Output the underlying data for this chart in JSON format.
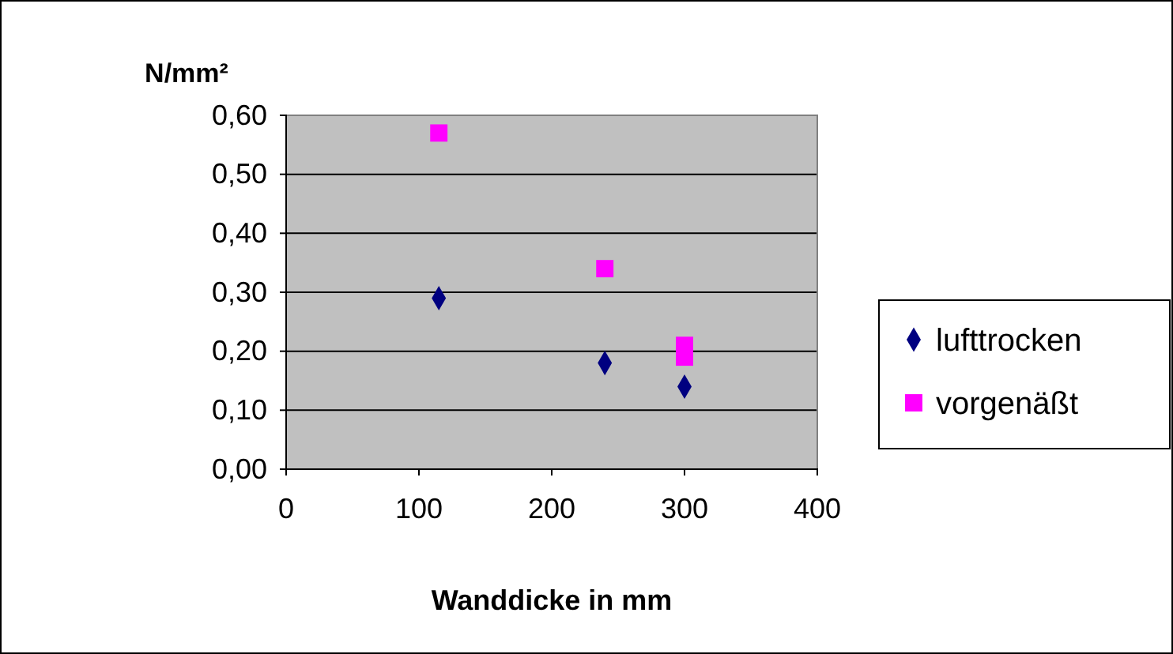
{
  "chart_data": {
    "type": "scatter",
    "xlabel": "Wanddicke in mm",
    "ylabel": "N/mm²",
    "series": [
      {
        "name": "lufttrocken",
        "color": "#000080",
        "marker": "diamond",
        "x": [
          115,
          240,
          300
        ],
        "values": [
          0.29,
          0.18,
          0.14
        ]
      },
      {
        "name": "vorgenäßt",
        "color": "#ff00ff",
        "marker": "square",
        "x": [
          115,
          240,
          300,
          300
        ],
        "values": [
          0.57,
          0.34,
          0.21,
          0.19
        ]
      }
    ],
    "xlim": [
      0,
      400
    ],
    "xticks": [
      0,
      100,
      200,
      300,
      400
    ],
    "ylim": [
      0,
      0.6
    ],
    "yticks": [
      {
        "value": 0,
        "label": "0,00"
      },
      {
        "value": 0.1,
        "label": "0,10"
      },
      {
        "value": 0.2,
        "label": "0,20"
      },
      {
        "value": 0.3,
        "label": "0,30"
      },
      {
        "value": 0.4,
        "label": "0,40"
      },
      {
        "value": 0.5,
        "label": "0,50"
      },
      {
        "value": 0.6,
        "label": "0,60"
      }
    ],
    "grid": "y",
    "legend": "right"
  }
}
